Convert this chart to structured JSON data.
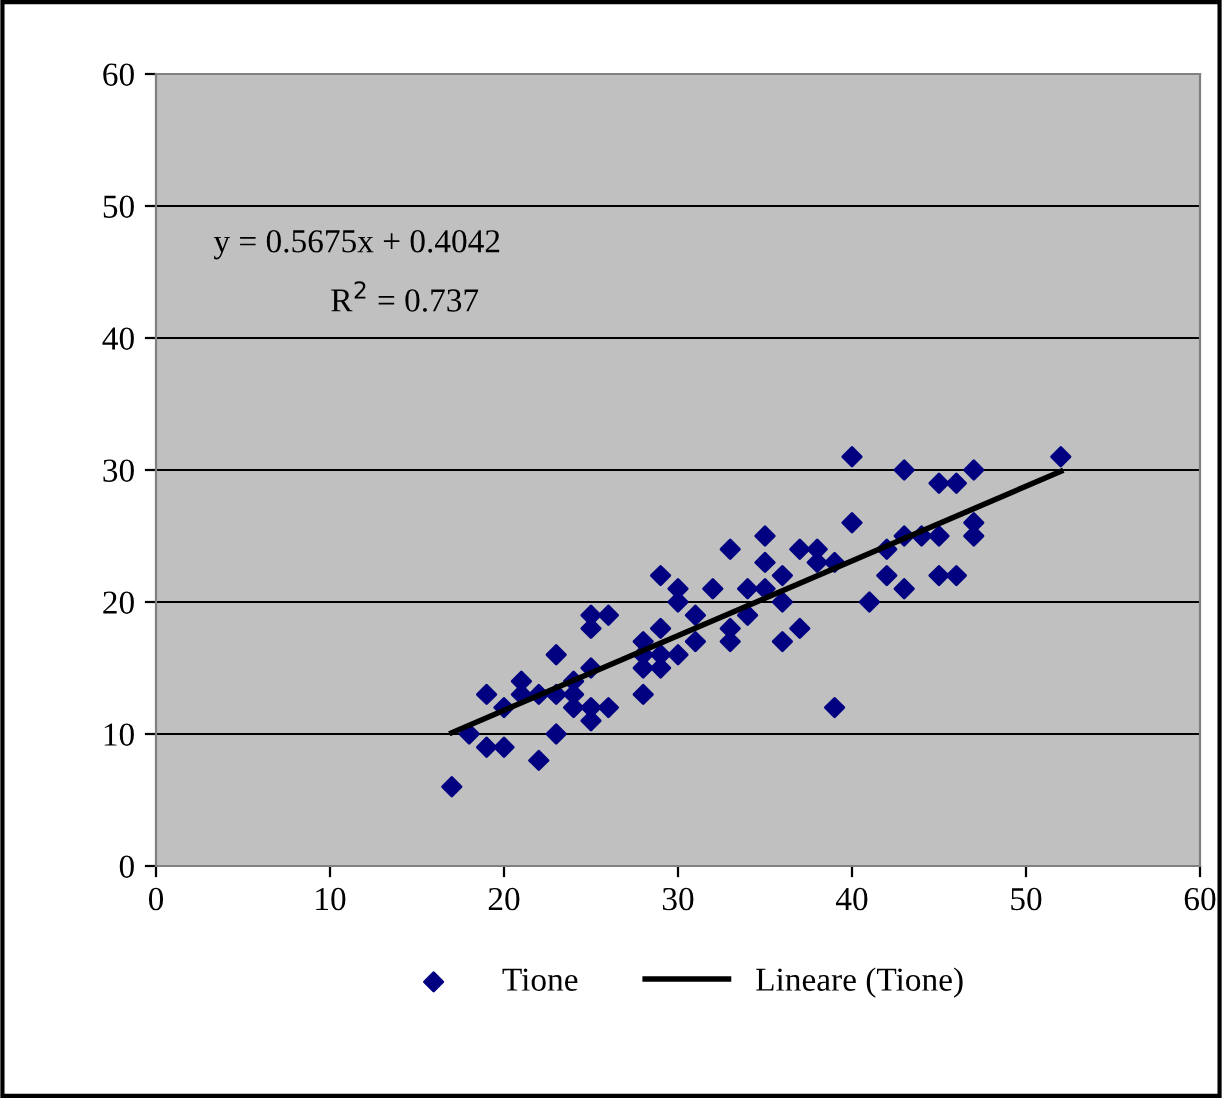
{
  "chart_data": {
    "type": "scatter",
    "xlim": [
      0,
      60
    ],
    "ylim": [
      0,
      60
    ],
    "xticks": [
      0,
      10,
      20,
      30,
      40,
      50,
      60
    ],
    "yticks": [
      0,
      10,
      20,
      30,
      40,
      50,
      60
    ],
    "grid": "y",
    "legend": "bottom",
    "annotations": [
      "y = 0.5675x + 0.4042",
      "R$^{2}$ = 0.737"
    ],
    "series": [
      {
        "name": "Tione",
        "marker": "diamond",
        "color": "#000080",
        "x": [
          17,
          18,
          19,
          19,
          20,
          20,
          21,
          21,
          22,
          22,
          23,
          23,
          23,
          24,
          24,
          24,
          25,
          25,
          25,
          25,
          25,
          26,
          26,
          28,
          28,
          28,
          28,
          29,
          29,
          29,
          29,
          30,
          30,
          30,
          31,
          31,
          32,
          33,
          33,
          33,
          34,
          34,
          35,
          35,
          35,
          36,
          36,
          36,
          37,
          37,
          38,
          38,
          39,
          39,
          40,
          40,
          41,
          42,
          42,
          43,
          43,
          43,
          44,
          45,
          45,
          45,
          46,
          46,
          47,
          47,
          47,
          52
        ],
        "values": [
          6,
          10,
          13,
          9,
          9,
          12,
          13,
          14,
          8,
          13,
          10,
          16,
          13,
          12,
          14,
          13,
          19,
          18,
          15,
          12,
          11,
          19,
          12,
          17,
          15,
          13,
          16,
          22,
          18,
          15,
          16,
          21,
          20,
          16,
          17,
          19,
          21,
          24,
          18,
          17,
          21,
          19,
          25,
          23,
          21,
          22,
          20,
          17,
          24,
          18,
          24,
          23,
          23,
          12,
          31,
          26,
          20,
          24,
          22,
          30,
          25,
          21,
          25,
          29,
          25,
          22,
          29,
          22,
          30,
          26,
          25,
          31
        ]
      },
      {
        "name": "Lineare (Tione)",
        "type": "line",
        "marker": "none",
        "color": "#000000",
        "x": [
          17,
          52
        ],
        "values": [
          10.1,
          29.9
        ]
      }
    ]
  }
}
